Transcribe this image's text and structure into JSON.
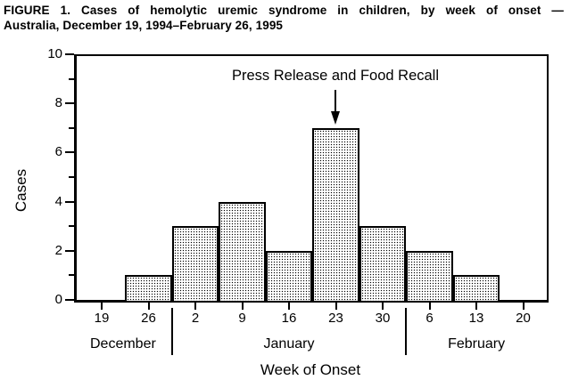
{
  "figure_title": {
    "line1": "FIGURE 1. Cases of hemolytic uremic syndrome in children, by week of onset —",
    "line2": "Australia, December 19, 1994–February 26, 1995"
  },
  "chart_data": {
    "type": "bar",
    "title": "FIGURE 1. Cases of hemolytic uremic syndrome in children, by week of onset — Australia, December 19, 1994–February 26, 1995",
    "xlabel": "Week of Onset",
    "ylabel": "Cases",
    "ylim": [
      0,
      10
    ],
    "y_major_ticks": [
      0,
      2,
      4,
      6,
      8,
      10
    ],
    "y_minor_ticks": [
      1,
      3,
      5,
      7,
      9
    ],
    "grid": false,
    "legend": "none",
    "categories": [
      "Dec 19",
      "Dec 26",
      "Jan 2",
      "Jan 9",
      "Jan 16",
      "Jan 23",
      "Jan 30",
      "Feb 6",
      "Feb 13",
      "Feb 20"
    ],
    "x_tick_labels": [
      "19",
      "26",
      "2",
      "9",
      "16",
      "23",
      "30",
      "6",
      "13",
      "20"
    ],
    "values": [
      0,
      1,
      3,
      4,
      2,
      7,
      3,
      2,
      1,
      0
    ],
    "month_groups": [
      {
        "label": "December",
        "tick_count": 2
      },
      {
        "label": "January",
        "tick_count": 5
      },
      {
        "label": "February",
        "tick_count": 3
      }
    ],
    "annotation": {
      "text": "Press Release and Food Recall",
      "points_to_category": "Jan 23",
      "points_to_value": 7,
      "arrow": "down"
    },
    "bar_fill_style": "stippled gray dot pattern",
    "bar_border_color": "#000000",
    "axis_color": "#000000",
    "background_color": "#ffffff"
  }
}
